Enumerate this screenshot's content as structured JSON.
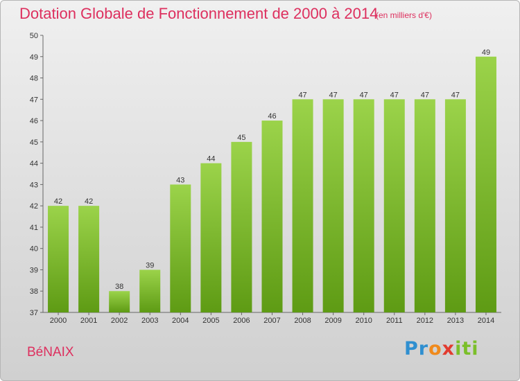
{
  "chart_data": {
    "type": "bar",
    "title": "Dotation Globale de Fonctionnement de 2000 à 2014",
    "subtitle": "(en milliers d'€)",
    "categories": [
      "2000",
      "2001",
      "2002",
      "2003",
      "2004",
      "2005",
      "2006",
      "2007",
      "2008",
      "2009",
      "2010",
      "2011",
      "2012",
      "2013",
      "2014"
    ],
    "values": [
      42,
      42,
      38,
      39,
      43,
      44,
      45,
      46,
      47,
      47,
      47,
      47,
      47,
      47,
      49
    ],
    "ylim": [
      37,
      50
    ],
    "yticks": [
      37,
      38,
      39,
      40,
      41,
      42,
      43,
      44,
      45,
      46,
      47,
      48,
      49,
      50
    ],
    "grid": false,
    "bar_color_top": "#9bd34a",
    "bar_color_bottom": "#5e9b14",
    "data_labels": true
  },
  "footer": {
    "location": "BéNAIX",
    "logo_text": "Proxiti"
  },
  "colors": {
    "title": "#dd2f5e",
    "axis": "#666666"
  }
}
